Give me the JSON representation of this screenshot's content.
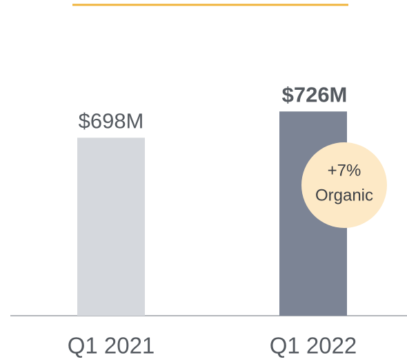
{
  "chart_data": {
    "type": "bar",
    "categories": [
      "Q1 2021",
      "Q1 2022"
    ],
    "values": [
      698,
      726
    ],
    "value_labels": [
      "$698M",
      "$726M"
    ],
    "colors": [
      "#d5d8dd",
      "#7c8495"
    ],
    "ylim": [
      508,
      800
    ],
    "annotation": [
      "+7%",
      "Organic"
    ],
    "annotation_color": "#fde9c6"
  }
}
